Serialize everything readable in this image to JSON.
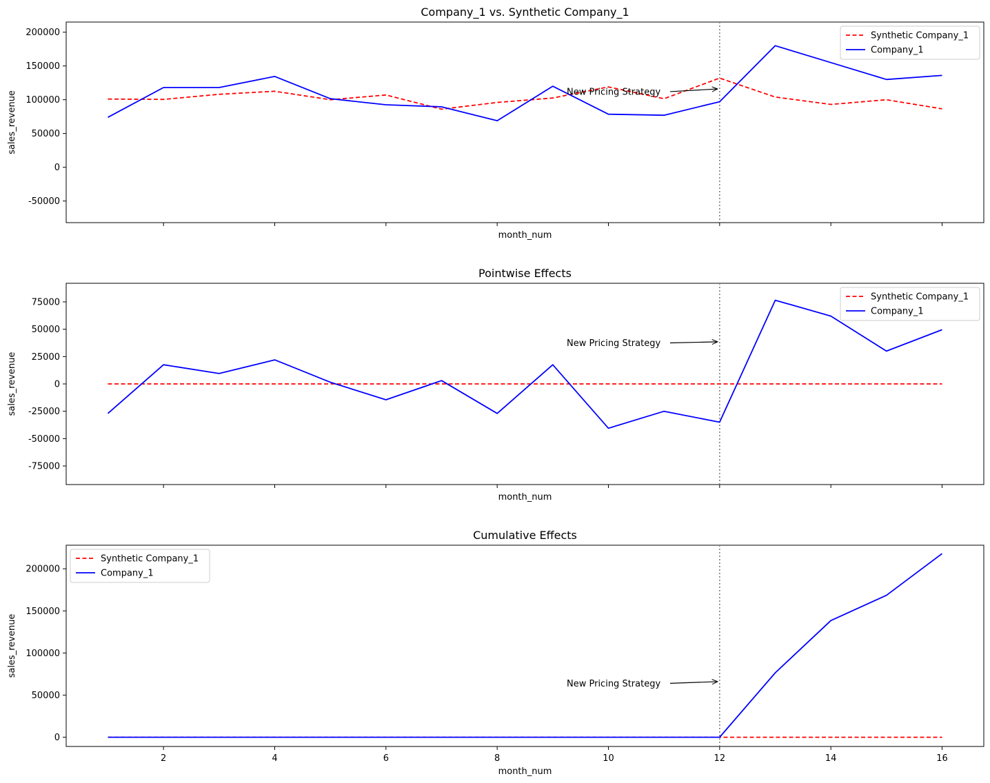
{
  "chart_data": [
    {
      "type": "line",
      "title": "Company_1 vs. Synthetic Company_1",
      "xlabel": "month_num",
      "ylabel": "sales_revenue",
      "xlim": [
        0.25,
        16.75
      ],
      "ylim": [
        -82000,
        215000
      ],
      "yticks": [
        -50000,
        0,
        50000,
        100000,
        150000,
        200000
      ],
      "xticks": [
        2,
        4,
        6,
        8,
        10,
        12,
        14,
        16
      ],
      "show_xtick_labels": false,
      "legend": "top-right",
      "annotation": {
        "text": "New Pricing Strategy",
        "x": 12,
        "y": 116000,
        "text_x": 9.25,
        "text_y": 112000
      },
      "vline_x": 12,
      "series": [
        {
          "name": "Synthetic Company_1",
          "color": "#ff0000",
          "style": "dashed",
          "x": [
            1,
            2,
            3,
            4,
            5,
            6,
            7,
            8,
            9,
            10,
            11,
            12,
            13,
            14,
            15,
            16
          ],
          "values": [
            101000,
            100500,
            108000,
            112500,
            100000,
            107000,
            86000,
            96000,
            102500,
            119000,
            101500,
            132000,
            104000,
            93000,
            100000,
            86500
          ]
        },
        {
          "name": "Company_1",
          "color": "#0000ff",
          "style": "solid",
          "x": [
            1,
            2,
            3,
            4,
            5,
            6,
            7,
            8,
            9,
            10,
            11,
            12,
            13,
            14,
            15,
            16
          ],
          "values": [
            74000,
            118000,
            118000,
            134500,
            101500,
            92500,
            89500,
            69000,
            120000,
            78500,
            77000,
            97000,
            180000,
            155000,
            130000,
            136000
          ]
        }
      ]
    },
    {
      "type": "line",
      "title": "Pointwise Effects",
      "xlabel": "month_num",
      "ylabel": "sales_revenue",
      "xlim": [
        0.25,
        16.75
      ],
      "ylim": [
        -92000,
        92000
      ],
      "yticks": [
        -75000,
        -50000,
        -25000,
        0,
        25000,
        50000,
        75000
      ],
      "xticks": [
        2,
        4,
        6,
        8,
        10,
        12,
        14,
        16
      ],
      "show_xtick_labels": false,
      "legend": "top-right",
      "annotation": {
        "text": "New Pricing Strategy",
        "x": 12,
        "y": 38500,
        "text_x": 9.25,
        "text_y": 37500
      },
      "vline_x": 12,
      "series": [
        {
          "name": "Synthetic Company_1",
          "color": "#ff0000",
          "style": "dashed",
          "x": [
            1,
            2,
            3,
            4,
            5,
            6,
            7,
            8,
            9,
            10,
            11,
            12,
            13,
            14,
            15,
            16
          ],
          "values": [
            0,
            0,
            0,
            0,
            0,
            0,
            0,
            0,
            0,
            0,
            0,
            0,
            0,
            0,
            0,
            0
          ]
        },
        {
          "name": "Company_1",
          "color": "#0000ff",
          "style": "solid",
          "x": [
            1,
            2,
            3,
            4,
            5,
            6,
            7,
            8,
            9,
            10,
            11,
            12,
            13,
            14,
            15,
            16
          ],
          "values": [
            -27000,
            17500,
            9500,
            22000,
            1500,
            -14500,
            3000,
            -27000,
            17500,
            -40500,
            -25000,
            -35000,
            76500,
            62000,
            30000,
            49500
          ]
        }
      ]
    },
    {
      "type": "line",
      "title": "Cumulative Effects",
      "xlabel": "month_num",
      "ylabel": "sales_revenue",
      "xlim": [
        0.25,
        16.75
      ],
      "ylim": [
        -11000,
        228000
      ],
      "yticks": [
        0,
        50000,
        100000,
        150000,
        200000
      ],
      "xticks": [
        2,
        4,
        6,
        8,
        10,
        12,
        14,
        16
      ],
      "show_xtick_labels": true,
      "legend": "top-left",
      "annotation": {
        "text": "New Pricing Strategy",
        "x": 12,
        "y": 66000,
        "text_x": 9.25,
        "text_y": 64000
      },
      "vline_x": 12,
      "series": [
        {
          "name": "Synthetic Company_1",
          "color": "#ff0000",
          "style": "dashed",
          "x": [
            1,
            2,
            3,
            4,
            5,
            6,
            7,
            8,
            9,
            10,
            11,
            12,
            13,
            14,
            15,
            16
          ],
          "values": [
            0,
            0,
            0,
            0,
            0,
            0,
            0,
            0,
            0,
            0,
            0,
            0,
            0,
            0,
            0,
            0
          ]
        },
        {
          "name": "Company_1",
          "color": "#0000ff",
          "style": "solid",
          "x": [
            1,
            2,
            3,
            4,
            5,
            6,
            7,
            8,
            9,
            10,
            11,
            12,
            13,
            14,
            15,
            16
          ],
          "values": [
            0,
            0,
            0,
            0,
            0,
            0,
            0,
            0,
            0,
            0,
            0,
            0,
            76500,
            138500,
            168500,
            218000
          ]
        }
      ]
    }
  ]
}
